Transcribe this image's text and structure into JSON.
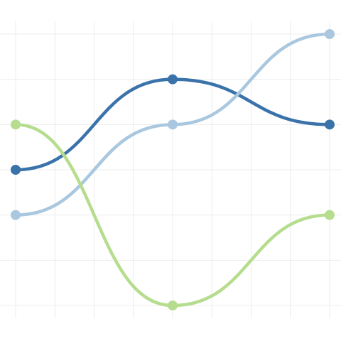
{
  "chart_data": {
    "type": "line",
    "title": "",
    "xlabel": "",
    "ylabel": "",
    "x": [
      1,
      2,
      3
    ],
    "xlim": [
      1,
      3
    ],
    "ylim": [
      1,
      7
    ],
    "grid": true,
    "legend": "none",
    "series": [
      {
        "key": "dark-blue",
        "color": "#3a72aa",
        "values": [
          4,
          6,
          5
        ]
      },
      {
        "key": "light-blue",
        "color": "#a9c8e0",
        "values": [
          3,
          5,
          7
        ]
      },
      {
        "key": "light-green",
        "color": "#b6dd8e",
        "values": [
          5,
          1,
          3
        ]
      }
    ]
  }
}
